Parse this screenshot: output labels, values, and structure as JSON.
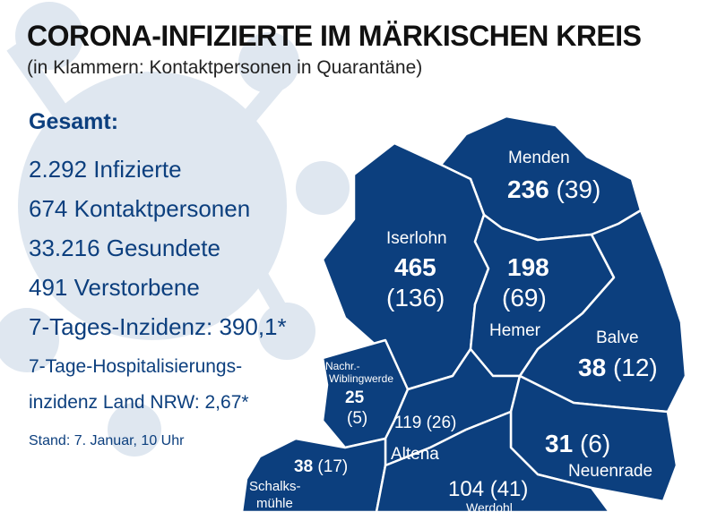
{
  "header": {
    "title": "CORONA-INFIZIERTE IM MÄRKISCHEN KREIS",
    "subtitle": "(in Klammern: Kontaktpersonen in Quarantäne)"
  },
  "summary": {
    "heading": "Gesamt:",
    "infected": "2.292 Infizierte",
    "contacts": "674 Kontaktpersonen",
    "recovered": "33.216 Gesundete",
    "deceased": "491 Verstorbene",
    "incidence": "7-Tages-Inzidenz: 390,1*",
    "hosp_line1": "7-Tage-Hospitalisierungs-",
    "hosp_line2": "inzidenz Land NRW: 2,67*",
    "status": "Stand: 7. Januar, 10 Uhr"
  },
  "regions": {
    "menden": {
      "name": "Menden",
      "infected": "236",
      "contacts": "(39)"
    },
    "iserlohn": {
      "name": "Iserlohn",
      "infected": "465",
      "contacts": "(136)"
    },
    "hemer": {
      "name": "Hemer",
      "infected": "198",
      "contacts": "(69)"
    },
    "balve": {
      "name": "Balve",
      "infected": "38",
      "contacts": "(12)"
    },
    "nachrodt": {
      "name_line1": "Nachr.-",
      "name_line2": "Wiblingwerde",
      "infected": "25",
      "contacts": "(5)"
    },
    "altena": {
      "name": "Altena",
      "infected": "119",
      "contacts": "(26)"
    },
    "neuenrade": {
      "name": "Neuenrade",
      "infected": "31",
      "contacts": "(6)"
    },
    "schalksmuehle": {
      "name_line1": "Schalks-",
      "name_line2": "mühle",
      "infected": "38",
      "contacts": "(17)"
    },
    "werdohl": {
      "name": "Werdohl",
      "infected": "104",
      "contacts": "(41)"
    }
  },
  "colors": {
    "map_fill": "#0c3f7e",
    "border": "#ffffff",
    "stats_text": "#0c3f7e",
    "background_virus": "#dde5ee"
  }
}
